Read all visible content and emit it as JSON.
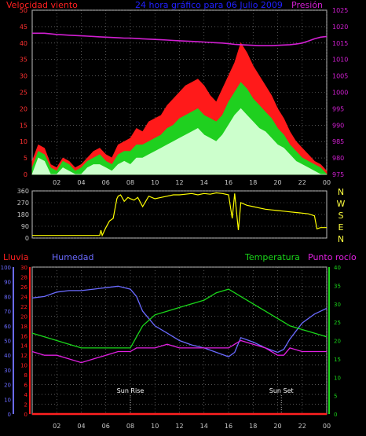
{
  "colors": {
    "background": "#000000",
    "frame": "#c0c0c0",
    "grid": "#8a8a8a",
    "wind_max": "#ff1a1a",
    "wind_avg": "#1fd01f",
    "wind_min": "#ccffcc",
    "pressure": "#d21fd2",
    "direction": "#ffff00",
    "rain": "#ff2020",
    "humidity": "#6a6aff",
    "temperature": "#1ad61a",
    "dewpoint": "#e020e0",
    "title": "#2020ff",
    "tick_text": "#c8c8c8"
  },
  "header": {
    "wind_label": "Velocidad viento",
    "title": "24 hora gráfico para 06 Julio 2009",
    "pressure_label": "Presión"
  },
  "x_ticks": [
    "02",
    "04",
    "06",
    "08",
    "10",
    "12",
    "14",
    "16",
    "18",
    "20",
    "22",
    "00"
  ],
  "chart_data": [
    {
      "type": "area",
      "panel": "wind",
      "ylabel": "Velocidad viento",
      "y2label": "Presión",
      "xlim": [
        0,
        24
      ],
      "ylim": [
        0,
        50
      ],
      "y2lim": [
        975,
        1025
      ],
      "y_ticks": [
        0,
        5,
        10,
        15,
        20,
        25,
        30,
        35,
        40,
        45,
        50
      ],
      "y2_ticks": [
        975,
        980,
        985,
        990,
        995,
        1000,
        1005,
        1010,
        1015,
        1020,
        1025
      ],
      "hours": [
        0,
        0.5,
        1,
        1.5,
        2,
        2.5,
        3,
        3.5,
        4,
        4.5,
        5,
        5.5,
        6,
        6.5,
        7,
        7.5,
        8,
        8.5,
        9,
        9.5,
        10,
        10.5,
        11,
        11.5,
        12,
        12.5,
        13,
        13.5,
        14,
        14.5,
        15,
        15.5,
        16,
        16.5,
        17,
        17.5,
        18,
        18.5,
        19,
        19.5,
        20,
        20.5,
        21,
        21.5,
        22,
        22.5,
        23,
        23.5,
        24
      ],
      "series": [
        {
          "key": "max",
          "values": [
            4,
            9,
            8,
            3,
            2,
            5,
            4,
            2,
            3,
            5,
            7,
            8,
            6,
            5,
            9,
            10,
            11,
            14,
            13,
            16,
            17,
            18,
            21,
            23,
            25,
            27,
            28,
            29,
            27,
            24,
            22,
            26,
            30,
            34,
            40,
            37,
            33,
            30,
            27,
            24,
            20,
            17,
            13,
            10,
            8,
            6,
            4,
            3,
            1
          ]
        },
        {
          "key": "avg",
          "values": [
            2,
            7,
            6,
            2,
            1,
            4,
            3,
            1,
            2,
            4,
            5,
            6,
            4,
            3,
            6,
            7,
            7,
            9,
            9,
            10,
            11,
            12,
            14,
            15,
            17,
            18,
            19,
            20,
            18,
            17,
            16,
            18,
            22,
            25,
            28,
            26,
            23,
            21,
            19,
            17,
            14,
            12,
            9,
            7,
            5,
            4,
            3,
            2,
            0
          ]
        },
        {
          "key": "min",
          "values": [
            0,
            5,
            4,
            0,
            0,
            2,
            1,
            0,
            0,
            2,
            3,
            3,
            2,
            1,
            3,
            4,
            3,
            5,
            5,
            6,
            7,
            8,
            9,
            10,
            11,
            12,
            13,
            14,
            12,
            11,
            10,
            12,
            15,
            18,
            20,
            18,
            16,
            14,
            13,
            11,
            9,
            8,
            6,
            4,
            3,
            2,
            1,
            0,
            0
          ]
        },
        {
          "key": "pressure",
          "values": [
            1018,
            1018,
            1018,
            1017.8,
            1017.6,
            1017.5,
            1017.4,
            1017.3,
            1017.2,
            1017.1,
            1017,
            1016.9,
            1016.8,
            1016.7,
            1016.6,
            1016.5,
            1016.5,
            1016.4,
            1016.3,
            1016.2,
            1016.1,
            1016,
            1015.9,
            1015.8,
            1015.7,
            1015.6,
            1015.5,
            1015.4,
            1015.3,
            1015.2,
            1015.1,
            1015,
            1014.8,
            1014.6,
            1014.5,
            1014.4,
            1014.3,
            1014.2,
            1014.2,
            1014.2,
            1014.3,
            1014.4,
            1014.5,
            1014.7,
            1015,
            1015.6,
            1016.3,
            1016.8,
            1017
          ]
        }
      ]
    },
    {
      "type": "line",
      "panel": "wind_direction",
      "y_right_labels": [
        "N",
        "W",
        "S",
        "E",
        "N"
      ],
      "xlim": [
        0,
        24
      ],
      "ylim": [
        0,
        360
      ],
      "y_ticks": [
        0,
        90,
        180,
        270,
        360
      ],
      "hours": [
        0,
        5.5,
        5.6,
        5.7,
        6,
        6.3,
        6.6,
        6.9,
        7,
        7.2,
        7.5,
        7.8,
        8,
        8.3,
        8.6,
        9,
        9.5,
        10,
        10.5,
        11,
        11.5,
        12,
        12.5,
        13,
        13.5,
        14,
        14.5,
        15,
        15.5,
        16,
        16.3,
        16.5,
        16.8,
        17,
        17.5,
        18,
        18.5,
        19,
        19.5,
        20,
        20.5,
        21,
        21.5,
        22,
        22.5,
        23,
        23.2,
        23.5,
        24
      ],
      "values": [
        20,
        20,
        60,
        20,
        80,
        130,
        150,
        300,
        320,
        330,
        280,
        310,
        300,
        290,
        310,
        240,
        320,
        300,
        310,
        320,
        330,
        330,
        335,
        340,
        330,
        340,
        335,
        345,
        340,
        330,
        150,
        340,
        60,
        270,
        250,
        240,
        230,
        220,
        215,
        210,
        205,
        200,
        195,
        190,
        185,
        170,
        70,
        80,
        80
      ]
    },
    {
      "type": "line",
      "panel": "climate",
      "xlim": [
        0,
        24
      ],
      "left_axes": [
        {
          "label": "Lluvia",
          "ticks": [
            0,
            2,
            4,
            6,
            8,
            10,
            12,
            14,
            16,
            18,
            20,
            22,
            24,
            26,
            28,
            30
          ],
          "ylim": [
            0,
            30
          ]
        },
        {
          "label": "Humedad",
          "ticks": [
            0,
            10,
            20,
            30,
            40,
            50,
            60,
            70,
            80,
            90,
            100
          ],
          "ylim": [
            0,
            100
          ]
        }
      ],
      "right_axis": {
        "label": "Temperatura",
        "ticks": [
          0,
          5,
          10,
          15,
          20,
          25,
          30,
          35,
          40
        ],
        "ylim": [
          0,
          40
        ]
      },
      "dewpoint_label": "Punto rocío",
      "annotations": [
        {
          "hour": 8,
          "label": "Sun Rise"
        },
        {
          "hour": 20.3,
          "label": "Sun Set"
        }
      ],
      "hours": [
        0,
        1,
        2,
        3,
        4,
        5,
        6,
        7,
        8,
        8.5,
        9,
        10,
        11,
        12,
        13,
        14,
        15,
        16,
        16.5,
        17,
        18,
        19,
        20,
        20.5,
        21,
        22,
        23,
        24
      ],
      "series": [
        {
          "key": "rain",
          "values": [
            0,
            0,
            0,
            0,
            0,
            0,
            0,
            0,
            0,
            0,
            0,
            0,
            0,
            0,
            0,
            0,
            0,
            0,
            0,
            0,
            0,
            0,
            0,
            0,
            0,
            0,
            0,
            0
          ]
        },
        {
          "key": "humidity",
          "values": [
            79,
            80,
            83,
            84,
            84,
            85,
            86,
            87,
            85,
            80,
            70,
            60,
            55,
            50,
            47,
            45,
            42,
            39,
            42,
            52,
            49,
            45,
            42,
            44,
            51,
            62,
            68,
            72
          ]
        },
        {
          "key": "temperature",
          "values": [
            22,
            21,
            20,
            19,
            18,
            18,
            18,
            18,
            18,
            21,
            24,
            27,
            28,
            29,
            30,
            31,
            33,
            34,
            33,
            32,
            30,
            28,
            26,
            25,
            24,
            23,
            22,
            21
          ]
        },
        {
          "key": "dewpoint",
          "values": [
            17,
            16,
            16,
            15,
            14,
            15,
            16,
            17,
            17,
            18,
            18,
            18,
            19,
            18,
            18,
            18,
            18,
            18,
            19,
            20,
            19,
            18,
            16,
            16,
            18,
            17,
            17,
            17
          ]
        }
      ]
    }
  ]
}
